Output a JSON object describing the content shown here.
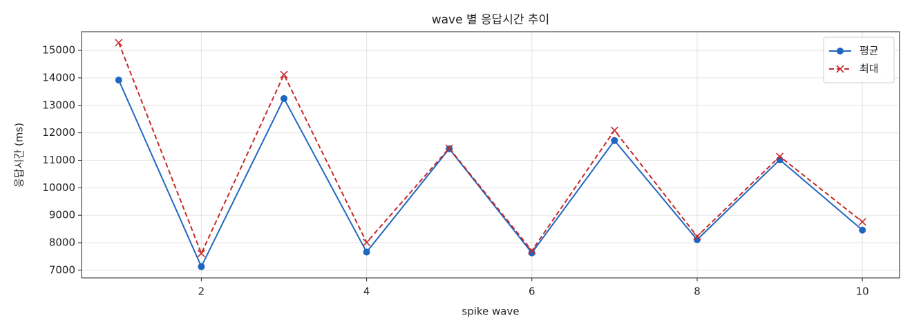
{
  "chart_data": {
    "type": "line",
    "title": "wave 별 응답시간 추이",
    "x_label": "spike wave",
    "y_label": "응답시간 (ms)",
    "x": [
      1,
      2,
      3,
      4,
      5,
      6,
      7,
      8,
      9,
      10
    ],
    "series": [
      {
        "name": "평균",
        "color": "#1f66c1",
        "marker": "o",
        "linestyle": "solid",
        "values": [
          13920,
          7130,
          13250,
          7660,
          11420,
          7630,
          11720,
          8110,
          11020,
          8460
        ]
      },
      {
        "name": "최대",
        "color": "#c62828",
        "marker": "x",
        "linestyle": "dashed",
        "values": [
          15280,
          7610,
          14120,
          8010,
          11440,
          7710,
          12090,
          8230,
          11140,
          8760
        ]
      }
    ],
    "xlim": [
      0.55,
      10.45
    ],
    "xticks": [
      2,
      4,
      6,
      8,
      10
    ],
    "ylim": [
      6720,
      15680
    ],
    "yticks": [
      7000,
      8000,
      9000,
      10000,
      11000,
      12000,
      13000,
      14000,
      15000
    ],
    "grid": true,
    "legend": "upper right"
  }
}
